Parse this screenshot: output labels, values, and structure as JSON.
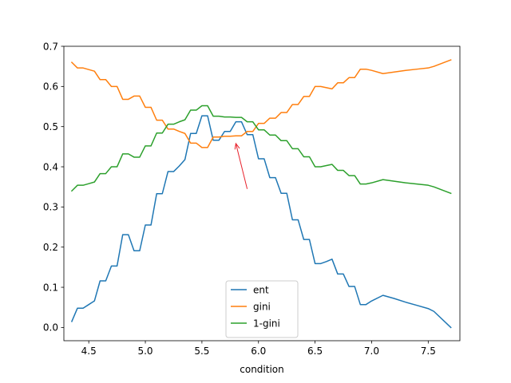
{
  "chart_data": {
    "type": "line",
    "title": "",
    "xlabel": "condition",
    "ylabel": "",
    "xlim": [
      4.28,
      7.78
    ],
    "ylim": [
      -0.033,
      0.7
    ],
    "xticks": [
      4.5,
      5.0,
      5.5,
      6.0,
      6.5,
      7.0,
      7.5
    ],
    "xtick_labels": [
      "4.5",
      "5.0",
      "5.5",
      "6.0",
      "6.5",
      "7.0",
      "7.5"
    ],
    "yticks": [
      0.0,
      0.1,
      0.2,
      0.3,
      0.4,
      0.5,
      0.6,
      0.7
    ],
    "ytick_labels": [
      "0.0",
      "0.1",
      "0.2",
      "0.3",
      "0.4",
      "0.5",
      "0.6",
      "0.7"
    ],
    "grid": false,
    "legend": {
      "position": "bottom-center"
    },
    "annotation": {
      "type": "arrow",
      "from": [
        5.9,
        0.345
      ],
      "to": [
        5.8,
        0.458
      ],
      "color": "#e8212b"
    },
    "series": [
      {
        "name": "ent",
        "color": "#1f77b4",
        "x": [
          4.35,
          4.4,
          4.45,
          4.5,
          4.55,
          4.6,
          4.65,
          4.7,
          4.75,
          4.8,
          4.85,
          4.9,
          4.95,
          5.0,
          5.05,
          5.1,
          5.15,
          5.2,
          5.25,
          5.3,
          5.35,
          5.4,
          5.45,
          5.5,
          5.55,
          5.6,
          5.65,
          5.7,
          5.75,
          5.8,
          5.85,
          5.9,
          5.95,
          6.0,
          6.05,
          6.1,
          6.15,
          6.2,
          6.25,
          6.3,
          6.35,
          6.4,
          6.45,
          6.5,
          6.55,
          6.6,
          6.65,
          6.7,
          6.75,
          6.8,
          6.85,
          6.9,
          6.95,
          7.0,
          7.1,
          7.2,
          7.3,
          7.4,
          7.5,
          7.55,
          7.7
        ],
        "values": [
          0.015,
          0.048,
          0.048,
          0.057,
          0.066,
          0.116,
          0.116,
          0.153,
          0.153,
          0.231,
          0.231,
          0.191,
          0.191,
          0.255,
          0.255,
          0.333,
          0.333,
          0.388,
          0.388,
          0.402,
          0.418,
          0.483,
          0.483,
          0.527,
          0.527,
          0.466,
          0.466,
          0.488,
          0.488,
          0.512,
          0.512,
          0.48,
          0.48,
          0.42,
          0.42,
          0.373,
          0.373,
          0.334,
          0.334,
          0.268,
          0.268,
          0.219,
          0.219,
          0.159,
          0.159,
          0.164,
          0.17,
          0.133,
          0.133,
          0.102,
          0.102,
          0.057,
          0.057,
          0.066,
          0.08,
          0.072,
          0.063,
          0.055,
          0.047,
          0.04,
          0.0
        ]
      },
      {
        "name": "gini",
        "color": "#ff7f0e",
        "x": [
          4.35,
          4.4,
          4.45,
          4.5,
          4.55,
          4.6,
          4.65,
          4.7,
          4.75,
          4.8,
          4.85,
          4.9,
          4.95,
          5.0,
          5.05,
          5.1,
          5.15,
          5.2,
          5.25,
          5.3,
          5.35,
          5.4,
          5.45,
          5.5,
          5.55,
          5.6,
          5.65,
          5.7,
          5.75,
          5.8,
          5.85,
          5.9,
          5.95,
          6.0,
          6.05,
          6.1,
          6.15,
          6.2,
          6.25,
          6.3,
          6.35,
          6.4,
          6.45,
          6.5,
          6.55,
          6.6,
          6.65,
          6.7,
          6.75,
          6.8,
          6.85,
          6.9,
          6.95,
          7.0,
          7.1,
          7.2,
          7.3,
          7.4,
          7.5,
          7.55,
          7.7
        ],
        "values": [
          0.66,
          0.646,
          0.646,
          0.642,
          0.638,
          0.617,
          0.617,
          0.6,
          0.6,
          0.568,
          0.568,
          0.576,
          0.576,
          0.548,
          0.548,
          0.516,
          0.516,
          0.494,
          0.494,
          0.488,
          0.483,
          0.459,
          0.459,
          0.448,
          0.448,
          0.474,
          0.474,
          0.476,
          0.476,
          0.477,
          0.477,
          0.488,
          0.488,
          0.508,
          0.508,
          0.521,
          0.521,
          0.535,
          0.535,
          0.555,
          0.555,
          0.575,
          0.575,
          0.6,
          0.6,
          0.597,
          0.594,
          0.609,
          0.609,
          0.622,
          0.622,
          0.643,
          0.643,
          0.64,
          0.632,
          0.636,
          0.64,
          0.643,
          0.646,
          0.65,
          0.666
        ]
      },
      {
        "name": "1-gini",
        "color": "#2ca02c",
        "x": [
          4.35,
          4.4,
          4.45,
          4.5,
          4.55,
          4.6,
          4.65,
          4.7,
          4.75,
          4.8,
          4.85,
          4.9,
          4.95,
          5.0,
          5.05,
          5.1,
          5.15,
          5.2,
          5.25,
          5.3,
          5.35,
          5.4,
          5.45,
          5.5,
          5.55,
          5.6,
          5.65,
          5.7,
          5.75,
          5.8,
          5.85,
          5.9,
          5.95,
          6.0,
          6.05,
          6.1,
          6.15,
          6.2,
          6.25,
          6.3,
          6.35,
          6.4,
          6.45,
          6.5,
          6.55,
          6.6,
          6.65,
          6.7,
          6.75,
          6.8,
          6.85,
          6.9,
          6.95,
          7.0,
          7.1,
          7.2,
          7.3,
          7.4,
          7.5,
          7.55,
          7.7
        ],
        "values": [
          0.34,
          0.354,
          0.354,
          0.358,
          0.362,
          0.383,
          0.383,
          0.4,
          0.4,
          0.432,
          0.432,
          0.424,
          0.424,
          0.452,
          0.452,
          0.484,
          0.484,
          0.506,
          0.506,
          0.512,
          0.517,
          0.541,
          0.541,
          0.552,
          0.552,
          0.526,
          0.526,
          0.524,
          0.524,
          0.523,
          0.523,
          0.512,
          0.512,
          0.492,
          0.492,
          0.479,
          0.479,
          0.465,
          0.465,
          0.445,
          0.445,
          0.425,
          0.425,
          0.4,
          0.4,
          0.403,
          0.406,
          0.391,
          0.391,
          0.378,
          0.378,
          0.357,
          0.357,
          0.36,
          0.368,
          0.364,
          0.36,
          0.357,
          0.354,
          0.35,
          0.334
        ]
      }
    ]
  }
}
